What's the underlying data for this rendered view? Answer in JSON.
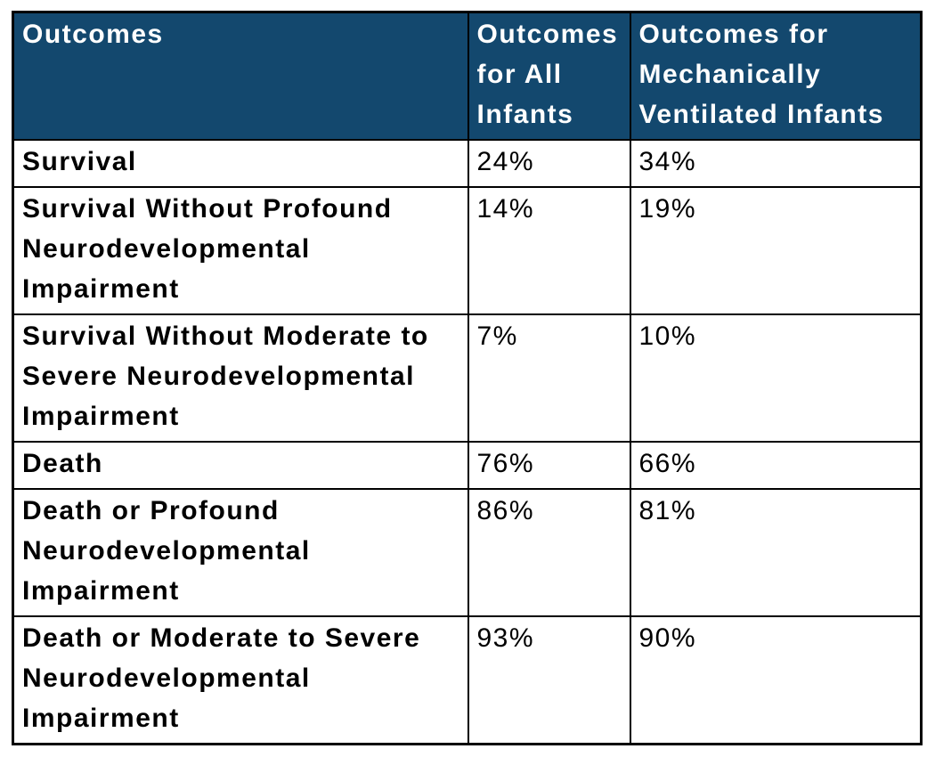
{
  "colors": {
    "header_bg": "#13486E",
    "header_text": "#FFFFFF",
    "body_text": "#000000",
    "border": "#000000",
    "body_bg": "#FFFFFF"
  },
  "table": {
    "columns": [
      {
        "label": "Outcomes"
      },
      {
        "label": "Outcomes for All Infants"
      },
      {
        "label": "Outcomes for Mechanically Ventilated Infants"
      }
    ],
    "rows": [
      {
        "outcome": "Survival",
        "all_infants": "24%",
        "ventilated": "34%"
      },
      {
        "outcome": "Survival Without Profound Neurodevelopmental Impairment",
        "all_infants": "14%",
        "ventilated": "19%"
      },
      {
        "outcome": "Survival Without Moderate to Severe Neurodevelopmental Impairment",
        "all_infants": "7%",
        "ventilated": "10%"
      },
      {
        "outcome": "Death",
        "all_infants": "76%",
        "ventilated": "66%"
      },
      {
        "outcome": "Death or Profound Neurodevelopmental Impairment",
        "all_infants": "86%",
        "ventilated": "81%"
      },
      {
        "outcome": "Death or Moderate to Severe Neurodevelopmental Impairment",
        "all_infants": "93%",
        "ventilated": "90%"
      }
    ]
  },
  "chart_data": {
    "type": "table",
    "columns": [
      "Outcomes",
      "Outcomes for All Infants",
      "Outcomes for Mechanically Ventilated Infants"
    ],
    "categories": [
      "Survival",
      "Survival Without Profound Neurodevelopmental Impairment",
      "Survival Without Moderate to Severe Neurodevelopmental Impairment",
      "Death",
      "Death or Profound Neurodevelopmental Impairment",
      "Death or Moderate to Severe Neurodevelopmental Impairment"
    ],
    "series": [
      {
        "name": "Outcomes for All Infants",
        "values": [
          24,
          14,
          7,
          76,
          86,
          93
        ],
        "unit": "%"
      },
      {
        "name": "Outcomes for Mechanically Ventilated Infants",
        "values": [
          34,
          19,
          10,
          66,
          81,
          90
        ],
        "unit": "%"
      }
    ]
  }
}
